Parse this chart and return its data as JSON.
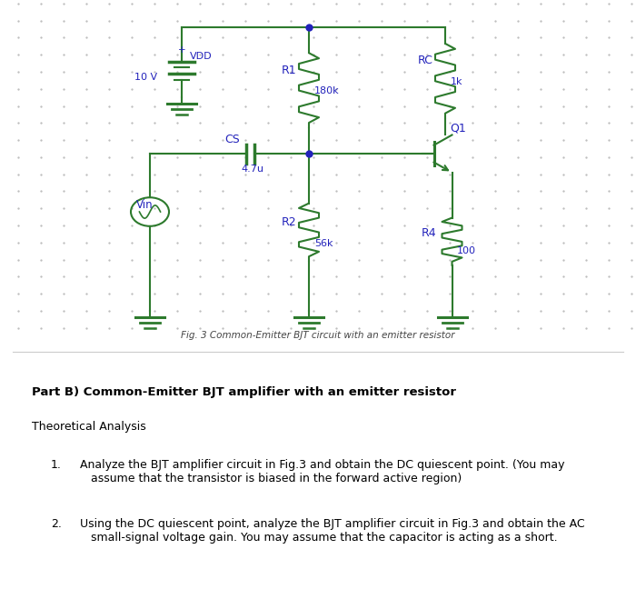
{
  "bg_color": "#f0f0f0",
  "circuit_color": "#2d7a2d",
  "label_color": "#2222bb",
  "dot_color": "#2222bb",
  "caption": "Fig. 3 Common-Emitter BJT circuit with an emitter resistor",
  "caption_fontsize": 7.5,
  "part_b_title": "Part B) Common-Emitter BJT amplifier with an emitter resistor",
  "theoretical_analysis": "Theoretical Analysis",
  "bullet1_num": "1.",
  "bullet1": "Analyze the BJT amplifier circuit in Fig.3 and obtain the DC quiescent point. (You may\nassume that the transistor is biased in the forward active region)",
  "bullet2_num": "2.",
  "bullet2": "Using the DC quiescent point, analyze the BJT amplifier circuit in Fig.3 and obtain the AC\nsmall-signal voltage gain. You may assume that the capacitor is acting as a short.",
  "grid_color": "#bbbbbb",
  "separator_color": "#cccccc"
}
